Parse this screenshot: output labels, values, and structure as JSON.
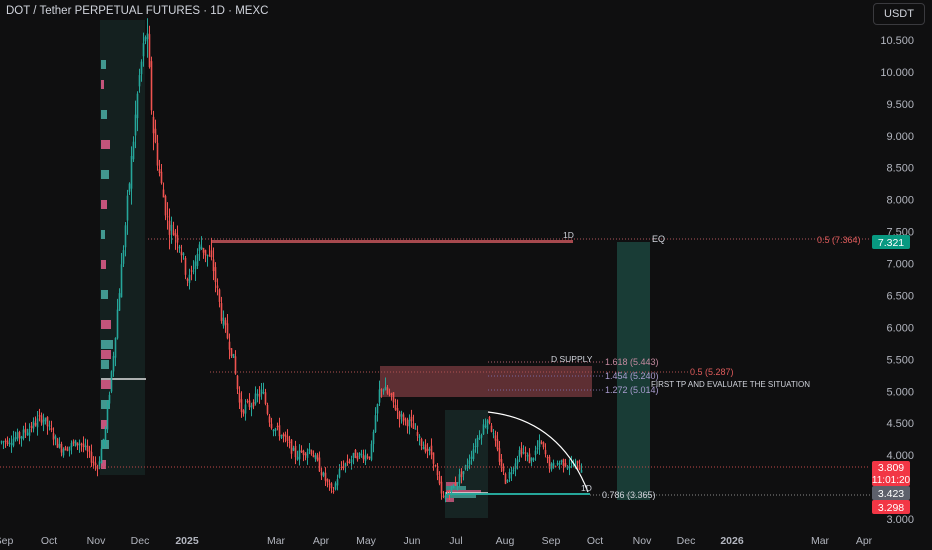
{
  "header": {
    "title": "DOT / Tether PERPETUAL FUTURES · 1D · MEXC",
    "currency": "USDT"
  },
  "colors": {
    "background": "#0f0f10",
    "up": "#26a69a",
    "down": "#ef5350",
    "supply_zone": "#7a3b3f",
    "target_zone": "#1b4d45",
    "price_badge_red": "#f23645",
    "price_badge_green": "#089981",
    "price_badge_gray": "#5d606b"
  },
  "chart_data": {
    "type": "candlestick",
    "title": "DOT / Tether PERPETUAL FUTURES · 1D · MEXC",
    "ylim": [
      2.95,
      10.85
    ],
    "y_ticks": [
      "10.500",
      "10.000",
      "9.500",
      "9.000",
      "8.500",
      "8.000",
      "7.500",
      "7.000",
      "6.500",
      "6.000",
      "5.500",
      "5.000",
      "4.500",
      "4.000",
      "3.000"
    ],
    "x_ticks": [
      "Sep",
      "Oct",
      "Nov",
      "Dec",
      "2025",
      "Mar",
      "Apr",
      "May",
      "Jun",
      "Jul",
      "Aug",
      "Sep",
      "Oct",
      "Nov",
      "Dec",
      "2026",
      "Mar",
      "Apr"
    ],
    "bold_x_ticks": [
      "2025",
      "2026"
    ],
    "series_anchors": [
      {
        "date": "Sep 2024",
        "close": 4.2
      },
      {
        "date": "Oct 2024",
        "close": 4.5
      },
      {
        "date": "late Oct 2024",
        "close": 4.0
      },
      {
        "date": "early Nov 2024",
        "close": 3.9
      },
      {
        "date": "mid Nov 2024",
        "close": 5.1
      },
      {
        "date": "late Nov 2024",
        "close": 8.0
      },
      {
        "date": "early Dec 2024",
        "close": 10.8
      },
      {
        "date": "mid Dec 2024",
        "close": 8.6
      },
      {
        "date": "late Dec 2024",
        "close": 7.0
      },
      {
        "date": "Jan 2025",
        "close": 7.2
      },
      {
        "date": "Feb 2025",
        "close": 5.2
      },
      {
        "date": "Mar 2025",
        "close": 4.3
      },
      {
        "date": "early Apr 2025",
        "close": 3.5
      },
      {
        "date": "late Apr 2025",
        "close": 4.1
      },
      {
        "date": "mid May 2025",
        "close": 5.2
      },
      {
        "date": "early Jun 2025",
        "close": 4.0
      },
      {
        "date": "late Jun 2025",
        "close": 3.3
      },
      {
        "date": "mid Jul 2025",
        "close": 4.6
      },
      {
        "date": "early Aug 2025",
        "close": 3.6
      },
      {
        "date": "mid Aug 2025",
        "close": 4.2
      },
      {
        "date": "early Sep 2025",
        "close": 3.8
      }
    ],
    "annotations": {
      "line_1d_top": "1D",
      "eq_label": "EQ",
      "fib_05_top": "0.5 (7.364)",
      "supply_label": "D SUPPLY",
      "fib_1618": "1.618 (5.443)",
      "fib_1454": "1.454 (5.240)",
      "fib_1272": "1.272 (5.014)",
      "fib_05_mid": "0.5 (5.287)",
      "first_tp": "FIRST TP AND EVALUATE THE SITUATION",
      "line_1d_bottom": "1D",
      "fib_0786": "0.786 (3.365)"
    },
    "price_badges": {
      "current_price": "3.809",
      "countdown": "11:01:20",
      "eq_price": "7.321",
      "gray_price": "3.423",
      "low_price": "3.298"
    }
  }
}
